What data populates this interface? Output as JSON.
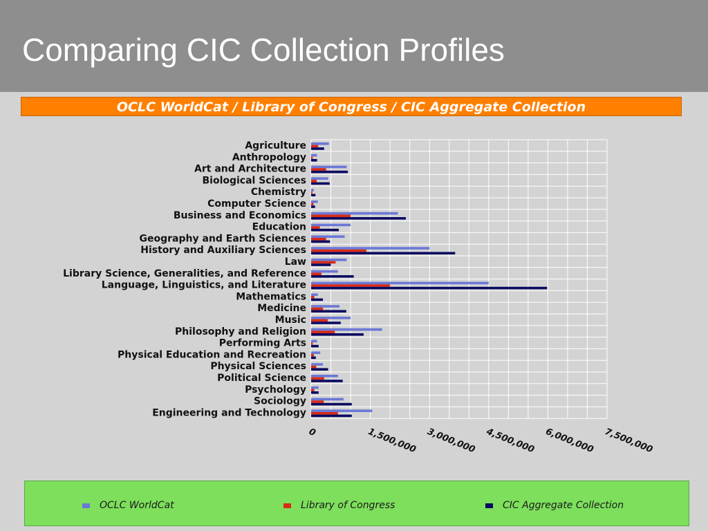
{
  "slide": {
    "title": "Comparing CIC Collection Profiles"
  },
  "chart_data": {
    "type": "bar",
    "orientation": "horizontal",
    "title": "OCLC WorldCat / Library of Congress / CIC Aggregate Collection",
    "xlabel": "",
    "ylabel": "",
    "xlim": [
      0,
      7500000
    ],
    "xticks": [
      0,
      1500000,
      3000000,
      4500000,
      6000000,
      7500000
    ],
    "xtick_labels": [
      "0",
      "1,500,000",
      "3,000,000",
      "4,500,000",
      "6,000,000",
      "7,500,000"
    ],
    "grid": true,
    "legend_position": "bottom",
    "categories": [
      "Agriculture",
      "Anthropology",
      "Art and Architecture",
      "Biological Sciences",
      "Chemistry",
      "Computer Science",
      "Business and Economics",
      "Education",
      "Geography and Earth Sciences",
      "History and Auxiliary Sciences",
      "Law",
      "Library Science, Generalities, and Reference",
      "Language, Linguistics, and Literature",
      "Mathematics",
      "Medicine",
      "Music",
      "Philosophy and Religion",
      "Performing Arts",
      "Physical Education and Recreation",
      "Physical Sciences",
      "Political Science",
      "Psychology",
      "Sociology",
      "Engineering and Technology"
    ],
    "series": [
      {
        "name": "OCLC WorldCat",
        "color": "#6b78d6",
        "values": [
          450000,
          150000,
          900000,
          430000,
          70000,
          170000,
          2200000,
          1000000,
          850000,
          3000000,
          900000,
          680000,
          4500000,
          170000,
          720000,
          1000000,
          1800000,
          150000,
          230000,
          300000,
          680000,
          190000,
          820000,
          1550000
        ]
      },
      {
        "name": "Library of Congress",
        "color": "#d82b14",
        "values": [
          180000,
          40000,
          380000,
          140000,
          30000,
          60000,
          1000000,
          220000,
          380000,
          1400000,
          620000,
          260000,
          2000000,
          80000,
          300000,
          420000,
          600000,
          40000,
          70000,
          130000,
          330000,
          80000,
          320000,
          680000
        ]
      },
      {
        "name": "CIC Aggregate Collection",
        "color": "#0a0a60",
        "values": [
          330000,
          150000,
          930000,
          470000,
          110000,
          100000,
          2400000,
          700000,
          480000,
          3650000,
          500000,
          1080000,
          5980000,
          300000,
          890000,
          750000,
          1330000,
          190000,
          120000,
          430000,
          800000,
          190000,
          1030000,
          1030000
        ]
      }
    ]
  },
  "legend": {
    "items": [
      {
        "label": "OCLC WorldCat",
        "color": "#6b78d6"
      },
      {
        "label": "Library of Congress",
        "color": "#d82b14"
      },
      {
        "label": "CIC Aggregate Collection",
        "color": "#0a0a60"
      }
    ]
  }
}
